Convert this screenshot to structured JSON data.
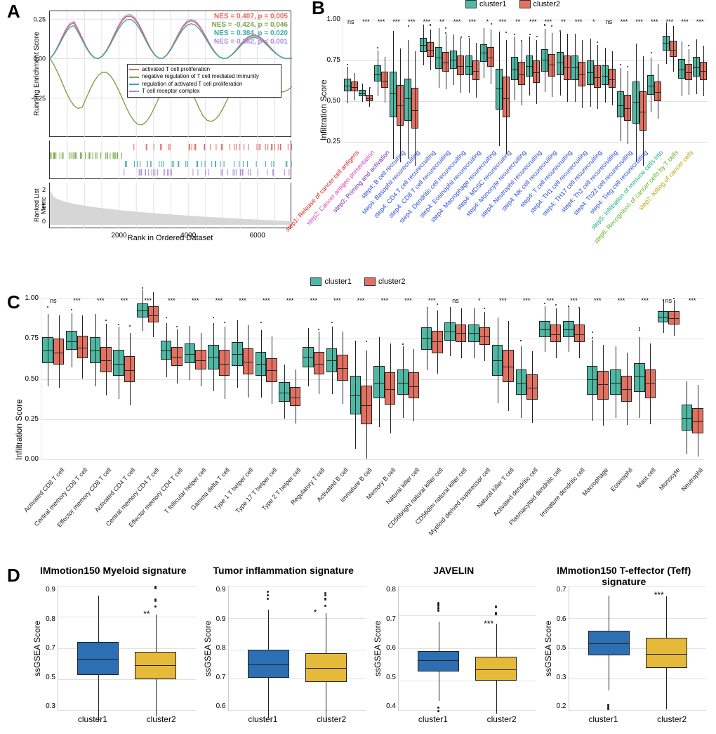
{
  "colors": {
    "cluster1": "#4db9a4",
    "cluster2": "#e47060",
    "d_cluster1": "#2c6fb2",
    "d_cluster2": "#e5b93a",
    "grid": "#e0e0e0",
    "gsea_red": "#e8655a",
    "gsea_green": "#78a648",
    "gsea_teal": "#3aa9a8",
    "gsea_purple": "#a98bdb",
    "grey_fill": "#d6d6d6"
  },
  "panelA": {
    "label": "A",
    "y1": "Running Enrichment Score",
    "y2": "Ranked List Metric",
    "x": "Rank in Ordered Dataset",
    "x_ticks": [
      "2000",
      "4000",
      "6000"
    ],
    "nes": [
      {
        "txt": "NES = 0.407, p = 0.005",
        "color": "gsea_red"
      },
      {
        "txt": "NES = -0.424, p = 0.046",
        "color": "gsea_green"
      },
      {
        "txt": "NES = 0.384, p = 0.020",
        "color": "gsea_teal"
      },
      {
        "txt": "NES = 0.382, p < 0.001",
        "color": "gsea_purple"
      }
    ],
    "legend": [
      {
        "txt": "activated T cell proliferation",
        "color": "gsea_red"
      },
      {
        "txt": "negative regulation of T cell mediated immunity",
        "color": "gsea_green"
      },
      {
        "txt": "regulation of activated T cell proliferation",
        "color": "gsea_teal"
      },
      {
        "txt": "T cell receptor complex",
        "color": "gsea_purple"
      }
    ]
  },
  "panelB": {
    "label": "B",
    "legend": [
      "cluster1",
      "cluster2"
    ],
    "ylim": [
      0.25,
      1.0
    ],
    "ylabel": "Infiltration Score",
    "cats": [
      {
        "n": "step1: Release of cancer cell antigens",
        "c": "#e02424",
        "s": "ns",
        "c1": [
          0.56,
          0.6,
          0.64
        ],
        "c2": [
          0.56,
          0.59,
          0.62
        ]
      },
      {
        "n": "step2: Cancer antigen presentation",
        "c": "#d940c0",
        "s": "***",
        "c1": [
          0.53,
          0.55,
          0.57
        ],
        "c2": [
          0.5,
          0.52,
          0.54
        ]
      },
      {
        "n": "step3: Priming and activation",
        "c": "#6d2fb8",
        "s": "***",
        "c1": [
          0.62,
          0.67,
          0.72
        ],
        "c2": [
          0.58,
          0.63,
          0.68
        ]
      },
      {
        "n": "step4: B cell recruiting",
        "c": "#2b4bd8",
        "s": "***",
        "c1": [
          0.4,
          0.55,
          0.68
        ],
        "c2": [
          0.35,
          0.48,
          0.6
        ]
      },
      {
        "n": "step4: Basophil recurecruiting",
        "c": "#2b4bd8",
        "s": "***",
        "c1": [
          0.38,
          0.52,
          0.64
        ],
        "c2": [
          0.33,
          0.45,
          0.58
        ]
      },
      {
        "n": "step4: CD4 T cell recurecruiting",
        "c": "#2b4bd8",
        "s": "***",
        "c1": [
          0.8,
          0.85,
          0.89
        ],
        "c2": [
          0.77,
          0.82,
          0.86
        ]
      },
      {
        "n": "step4: CD8 T cell recurecruiting",
        "c": "#2b4bd8",
        "s": "**",
        "c1": [
          0.7,
          0.77,
          0.83
        ],
        "c2": [
          0.68,
          0.74,
          0.8
        ]
      },
      {
        "n": "step4: Dendritic cell recurecruiting",
        "c": "#2b4bd8",
        "s": "***",
        "c1": [
          0.7,
          0.76,
          0.81
        ],
        "c2": [
          0.66,
          0.72,
          0.78
        ]
      },
      {
        "n": "step4: Eosinophil recurecruiting",
        "c": "#2b4bd8",
        "s": "***",
        "c1": [
          0.66,
          0.72,
          0.78
        ],
        "c2": [
          0.63,
          0.69,
          0.75
        ]
      },
      {
        "n": "step4: Macrophage recurecruiting",
        "c": "#2b4bd8",
        "s": "*",
        "c1": [
          0.74,
          0.8,
          0.85
        ],
        "c2": [
          0.71,
          0.77,
          0.83
        ]
      },
      {
        "n": "step4: MDSC recurecruiting",
        "c": "#2b4bd8",
        "s": "***",
        "c1": [
          0.45,
          0.58,
          0.7
        ],
        "c2": [
          0.4,
          0.52,
          0.65
        ]
      },
      {
        "n": "step4: Monocyte recurecruiting",
        "c": "#2b4bd8",
        "s": "**",
        "c1": [
          0.63,
          0.7,
          0.77
        ],
        "c2": [
          0.6,
          0.67,
          0.74
        ]
      },
      {
        "n": "step4: Neutrophil recurecruiting",
        "c": "#2b4bd8",
        "s": "***",
        "c1": [
          0.65,
          0.72,
          0.78
        ],
        "c2": [
          0.61,
          0.68,
          0.75
        ]
      },
      {
        "n": "step4: NK cell recurecruiting",
        "c": "#2b4bd8",
        "s": "***",
        "c1": [
          0.68,
          0.76,
          0.82
        ],
        "c2": [
          0.65,
          0.73,
          0.79
        ]
      },
      {
        "n": "step4: T cell recurecruiting",
        "c": "#2b4bd8",
        "s": "**",
        "c1": [
          0.66,
          0.74,
          0.8
        ],
        "c2": [
          0.63,
          0.71,
          0.78
        ]
      },
      {
        "n": "step4: TH1 cell recurecruiting",
        "c": "#2b4bd8",
        "s": "***",
        "c1": [
          0.63,
          0.71,
          0.78
        ],
        "c2": [
          0.59,
          0.67,
          0.74
        ]
      },
      {
        "n": "step4: TH17 cell recurecruiting",
        "c": "#2b4bd8",
        "s": "*",
        "c1": [
          0.6,
          0.68,
          0.75
        ],
        "c2": [
          0.58,
          0.65,
          0.72
        ]
      },
      {
        "n": "step4: Th2 cell recurecruiting",
        "c": "#2b4bd8",
        "s": "ns",
        "c1": [
          0.6,
          0.66,
          0.72
        ],
        "c2": [
          0.58,
          0.64,
          0.7
        ]
      },
      {
        "n": "step4: Th22 cell recurecruiting",
        "c": "#2b4bd8",
        "s": "***",
        "c1": [
          0.4,
          0.48,
          0.56
        ],
        "c2": [
          0.38,
          0.46,
          0.54
        ]
      },
      {
        "n": "step4: Treg cell recurecruiting",
        "c": "#2b4bd8",
        "s": "***",
        "c1": [
          0.36,
          0.5,
          0.62
        ],
        "c2": [
          0.32,
          0.44,
          0.56
        ]
      },
      {
        "n": "step5: Infiltration of immune cells into",
        "c": "#18b07a",
        "s": "***",
        "c1": [
          0.54,
          0.6,
          0.66
        ],
        "c2": [
          0.5,
          0.56,
          0.62
        ]
      },
      {
        "n": "step6: Recognition of cancer cells by T cells",
        "c": "#63b324",
        "s": "***",
        "c1": [
          0.81,
          0.86,
          0.9
        ],
        "c2": [
          0.77,
          0.82,
          0.87
        ]
      },
      {
        "n": "step7: Killing of cancer cells",
        "c": "#b8a500",
        "s": "***",
        "c1": [
          0.64,
          0.7,
          0.76
        ],
        "c2": [
          0.63,
          0.68,
          0.73
        ]
      },
      {
        "n": "",
        "c": "#b8a500",
        "s": "***",
        "c1": [
          0.65,
          0.71,
          0.77
        ],
        "c2": [
          0.63,
          0.69,
          0.74
        ]
      }
    ]
  },
  "panelC": {
    "label": "C",
    "legend": [
      "cluster1",
      "cluster2"
    ],
    "ylim": [
      0.0,
      1.0
    ],
    "ylabel": "Infiltration Score",
    "cats": [
      {
        "n": "Activated CD8 T cell",
        "s": "ns",
        "c1": [
          0.6,
          0.68,
          0.76
        ],
        "c2": [
          0.59,
          0.67,
          0.75
        ]
      },
      {
        "n": "Central memory CD8 T cell",
        "s": "***",
        "c1": [
          0.68,
          0.74,
          0.8
        ],
        "c2": [
          0.63,
          0.7,
          0.77
        ]
      },
      {
        "n": "Effector memory CD8 T cell",
        "s": "***",
        "c1": [
          0.6,
          0.68,
          0.76
        ],
        "c2": [
          0.54,
          0.62,
          0.7
        ]
      },
      {
        "n": "Activated CD4 T cell",
        "s": "***",
        "c1": [
          0.52,
          0.6,
          0.68
        ],
        "c2": [
          0.48,
          0.56,
          0.64
        ]
      },
      {
        "n": "Central memory CD4 T cell",
        "s": "***",
        "c1": [
          0.88,
          0.93,
          0.97
        ],
        "c2": [
          0.85,
          0.9,
          0.95
        ]
      },
      {
        "n": "Effector memory CD4 T cell",
        "s": "***",
        "c1": [
          0.62,
          0.68,
          0.74
        ],
        "c2": [
          0.58,
          0.64,
          0.7
        ]
      },
      {
        "n": "T follicular helper cell",
        "s": "***",
        "c1": [
          0.6,
          0.66,
          0.72
        ],
        "c2": [
          0.56,
          0.62,
          0.68
        ]
      },
      {
        "n": "Gamma delta T cell",
        "s": "***",
        "c1": [
          0.56,
          0.64,
          0.71
        ],
        "c2": [
          0.52,
          0.6,
          0.68
        ]
      },
      {
        "n": "Type 1 T helper cell",
        "s": "***",
        "c1": [
          0.58,
          0.66,
          0.73
        ],
        "c2": [
          0.53,
          0.61,
          0.69
        ]
      },
      {
        "n": "Type 17 T helper cell",
        "s": "***",
        "c1": [
          0.52,
          0.6,
          0.67
        ],
        "c2": [
          0.48,
          0.56,
          0.63
        ]
      },
      {
        "n": "Type 2 T helper cell",
        "s": "***",
        "c1": [
          0.36,
          0.42,
          0.48
        ],
        "c2": [
          0.33,
          0.39,
          0.45
        ]
      },
      {
        "n": "Regulatory T cell",
        "s": "***",
        "c1": [
          0.57,
          0.64,
          0.7
        ],
        "c2": [
          0.53,
          0.6,
          0.67
        ]
      },
      {
        "n": "Activated B cell",
        "s": "***",
        "c1": [
          0.54,
          0.62,
          0.69
        ],
        "c2": [
          0.49,
          0.57,
          0.65
        ]
      },
      {
        "n": "Immature  B cell",
        "s": "***",
        "c1": [
          0.28,
          0.4,
          0.52
        ],
        "c2": [
          0.22,
          0.34,
          0.46
        ]
      },
      {
        "n": "Memory B cell",
        "s": "***",
        "c1": [
          0.38,
          0.48,
          0.58
        ],
        "c2": [
          0.34,
          0.44,
          0.54
        ]
      },
      {
        "n": "Natural killer cell",
        "s": "***",
        "c1": [
          0.4,
          0.48,
          0.56
        ],
        "c2": [
          0.38,
          0.46,
          0.54
        ]
      },
      {
        "n": "CD56bright natural killer cell",
        "s": "***",
        "c1": [
          0.68,
          0.76,
          0.82
        ],
        "c2": [
          0.66,
          0.74,
          0.8
        ]
      },
      {
        "n": "CD56dim natural killer cell",
        "s": "ns",
        "c1": [
          0.74,
          0.8,
          0.85
        ],
        "c2": [
          0.73,
          0.79,
          0.84
        ]
      },
      {
        "n": "Myeloid derived suppressor cell",
        "s": "*",
        "c1": [
          0.73,
          0.79,
          0.84
        ],
        "c2": [
          0.71,
          0.77,
          0.82
        ]
      },
      {
        "n": "Natural killer T cell",
        "s": "***",
        "c1": [
          0.52,
          0.62,
          0.71
        ],
        "c2": [
          0.48,
          0.58,
          0.68
        ]
      },
      {
        "n": "Activated dendritic cell",
        "s": "***",
        "c1": [
          0.4,
          0.48,
          0.56
        ],
        "c2": [
          0.37,
          0.45,
          0.53
        ]
      },
      {
        "n": "Plasmacytoid dendritic cell",
        "s": "***",
        "c1": [
          0.76,
          0.81,
          0.86
        ],
        "c2": [
          0.73,
          0.78,
          0.84
        ]
      },
      {
        "n": "Immature dendritic cell",
        "s": "***",
        "c1": [
          0.76,
          0.81,
          0.86
        ],
        "c2": [
          0.73,
          0.78,
          0.84
        ]
      },
      {
        "n": "Macrophage",
        "s": "***",
        "c1": [
          0.4,
          0.5,
          0.58
        ],
        "c2": [
          0.37,
          0.47,
          0.55
        ]
      },
      {
        "n": "Eosinophil",
        "s": "***",
        "c1": [
          0.4,
          0.48,
          0.56
        ],
        "c2": [
          0.36,
          0.44,
          0.52
        ]
      },
      {
        "n": "Mast cell",
        "s": "***",
        "c1": [
          0.42,
          0.52,
          0.6
        ],
        "c2": [
          0.38,
          0.48,
          0.56
        ]
      },
      {
        "n": "Monocyte",
        "s": "ns",
        "c1": [
          0.85,
          0.89,
          0.92
        ],
        "c2": [
          0.84,
          0.88,
          0.92
        ]
      },
      {
        "n": "Neutrophil",
        "s": "***",
        "c1": [
          0.18,
          0.26,
          0.34
        ],
        "c2": [
          0.16,
          0.24,
          0.32
        ]
      }
    ]
  },
  "panelD": {
    "label": "D",
    "ylabel": "ssGSEA Score",
    "cats": [
      "cluster1",
      "cluster2"
    ],
    "plots": [
      {
        "title": "IMmotion150 Myeloid signature",
        "sig": "**",
        "ylim": [
          0.35,
          0.95
        ],
        "c1": [
          0.52,
          0.6,
          0.68
        ],
        "c2": [
          0.5,
          0.57,
          0.63
        ]
      },
      {
        "title": "Tumor inflammation signature",
        "sig": "*",
        "ylim": [
          0.6,
          0.95
        ],
        "c1": [
          0.69,
          0.73,
          0.77
        ],
        "c2": [
          0.68,
          0.72,
          0.76
        ]
      },
      {
        "title": "JAVELIN",
        "sig": "***",
        "ylim": [
          0.38,
          0.8
        ],
        "c1": [
          0.51,
          0.55,
          0.58
        ],
        "c2": [
          0.48,
          0.52,
          0.56
        ]
      },
      {
        "title": "IMmotion150 T-effector (Teff) signature",
        "sig": "***",
        "ylim": [
          0.2,
          0.7
        ],
        "c1": [
          0.42,
          0.47,
          0.52
        ],
        "c2": [
          0.37,
          0.43,
          0.49
        ]
      }
    ]
  }
}
